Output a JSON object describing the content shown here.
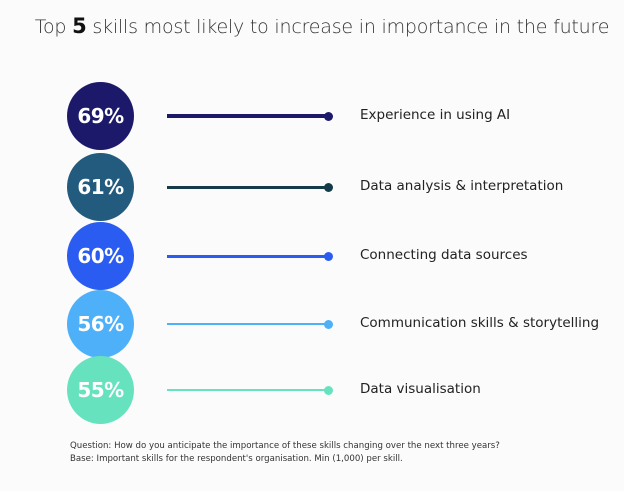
{
  "chart_data": {
    "type": "bar",
    "title_prefix": "Top ",
    "title_number": "5",
    "title_suffix": " skills most likely to increase in importance in the future",
    "unit": "%",
    "items": [
      {
        "label": "Experience in using AI",
        "value": 69,
        "value_label": "69%",
        "circle_color": "#1c196b",
        "line_color": "#1c196b"
      },
      {
        "label": "Data analysis & interpretation",
        "value": 61,
        "value_label": "61%",
        "circle_color": "#235b7e",
        "line_color": "#143c48"
      },
      {
        "label": "Connecting data sources",
        "value": 60,
        "value_label": "60%",
        "circle_color": "#2a5cf2",
        "line_color": "#2a5cf2"
      },
      {
        "label": "Communication skills & storytelling",
        "value": 56,
        "value_label": "56%",
        "circle_color": "#4eb0f8",
        "line_color": "#4eb0f8"
      },
      {
        "label": "Data visualisation",
        "value": 55,
        "value_label": "55%",
        "circle_color": "#66e2bf",
        "line_color": "#66e2bf"
      }
    ]
  },
  "footnotes": {
    "question": "Question: How do you anticipate the importance of these skills changing over the next three years?",
    "base": "Base: Important skills for the respondent's organisation. Min (1,000) per skill."
  }
}
